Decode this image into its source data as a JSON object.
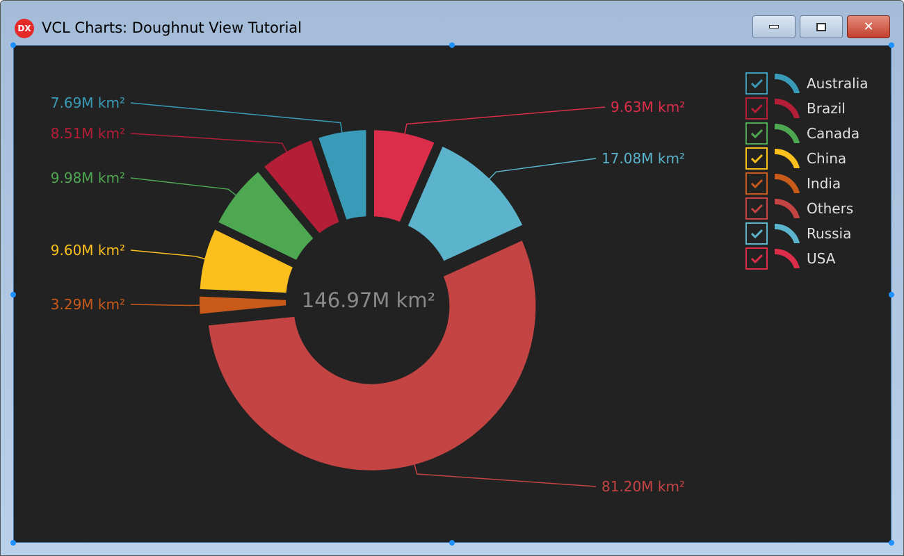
{
  "window": {
    "title": "VCL Charts: Doughnut View Tutorial",
    "icon": "DX",
    "buttons": [
      "minimize",
      "maximize",
      "close"
    ]
  },
  "chart_data": {
    "type": "pie",
    "variant": "doughnut",
    "center_label": "146.97M km²",
    "unit": "M km²",
    "legend_placement": "top-right",
    "series": [
      {
        "name": "Australia",
        "value": 7.69,
        "label": "7.69M km²",
        "color": "#3a9bb8",
        "checked": true
      },
      {
        "name": "Brazil",
        "value": 8.51,
        "label": "8.51M km²",
        "color": "#b41e37",
        "checked": true
      },
      {
        "name": "Canada",
        "value": 9.98,
        "label": "9.98M km²",
        "color": "#4ea852",
        "checked": true
      },
      {
        "name": "China",
        "value": 9.6,
        "label": "9.60M km²",
        "color": "#fbbf1e",
        "checked": true
      },
      {
        "name": "India",
        "value": 3.29,
        "label": "3.29M km²",
        "color": "#c85a1a",
        "checked": true
      },
      {
        "name": "Others",
        "value": 81.2,
        "label": "81.20M km²",
        "color": "#c44444",
        "checked": true
      },
      {
        "name": "Russia",
        "value": 17.08,
        "label": "17.08M km²",
        "color": "#5cb4cc",
        "checked": true
      },
      {
        "name": "USA",
        "value": 9.63,
        "label": "9.63M km²",
        "color": "#dc2e4a",
        "checked": true
      }
    ]
  }
}
